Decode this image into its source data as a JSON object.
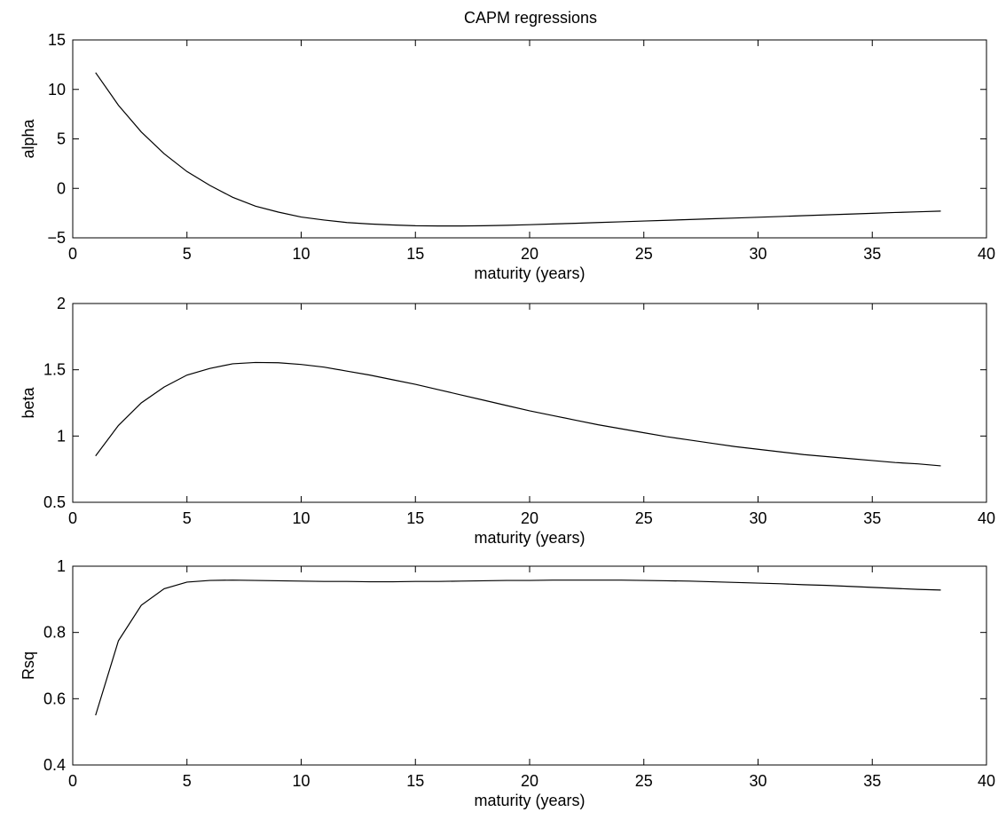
{
  "figure": {
    "title": "CAPM regressions"
  },
  "chart_data": [
    {
      "type": "line",
      "title": "CAPM regressions",
      "xlabel": "maturity (years)",
      "ylabel": "alpha",
      "xlim": [
        0,
        40
      ],
      "ylim": [
        -5,
        15
      ],
      "xticks": [
        0,
        5,
        10,
        15,
        20,
        25,
        30,
        35,
        40
      ],
      "yticks": [
        -5,
        0,
        5,
        10,
        15
      ],
      "ytick_labels": [
        "−5",
        "0",
        "5",
        "10",
        "15"
      ],
      "grid": false,
      "x": [
        1,
        2,
        3,
        4,
        5,
        6,
        7,
        8,
        9,
        10,
        11,
        12,
        13,
        14,
        15,
        16,
        17,
        18,
        19,
        20,
        21,
        22,
        23,
        24,
        25,
        26,
        27,
        28,
        29,
        30,
        31,
        32,
        33,
        34,
        35,
        36,
        37,
        38
      ],
      "series": [
        {
          "color": "#000000",
          "values": [
            11.7,
            8.4,
            5.7,
            3.5,
            1.7,
            0.3,
            -0.9,
            -1.8,
            -2.4,
            -2.9,
            -3.2,
            -3.45,
            -3.6,
            -3.7,
            -3.78,
            -3.8,
            -3.8,
            -3.78,
            -3.73,
            -3.67,
            -3.6,
            -3.53,
            -3.45,
            -3.38,
            -3.3,
            -3.23,
            -3.15,
            -3.07,
            -3.0,
            -2.92,
            -2.84,
            -2.76,
            -2.68,
            -2.6,
            -2.52,
            -2.44,
            -2.37,
            -2.3
          ]
        }
      ]
    },
    {
      "type": "line",
      "title": "",
      "xlabel": "maturity (years)",
      "ylabel": "beta",
      "xlim": [
        0,
        40
      ],
      "ylim": [
        0.5,
        2
      ],
      "xticks": [
        0,
        5,
        10,
        15,
        20,
        25,
        30,
        35,
        40
      ],
      "yticks": [
        0.5,
        1,
        1.5,
        2
      ],
      "ytick_labels": [
        "0.5",
        "1",
        "1.5",
        "2"
      ],
      "grid": false,
      "x": [
        1,
        2,
        3,
        4,
        5,
        6,
        7,
        8,
        9,
        10,
        11,
        12,
        13,
        14,
        15,
        16,
        17,
        18,
        19,
        20,
        21,
        22,
        23,
        24,
        25,
        26,
        27,
        28,
        29,
        30,
        31,
        32,
        33,
        34,
        35,
        36,
        37,
        38
      ],
      "series": [
        {
          "color": "#000000",
          "values": [
            0.85,
            1.08,
            1.25,
            1.37,
            1.46,
            1.51,
            1.545,
            1.555,
            1.553,
            1.54,
            1.52,
            1.49,
            1.46,
            1.425,
            1.39,
            1.35,
            1.31,
            1.27,
            1.23,
            1.19,
            1.155,
            1.12,
            1.085,
            1.055,
            1.025,
            0.995,
            0.97,
            0.945,
            0.92,
            0.9,
            0.88,
            0.86,
            0.845,
            0.83,
            0.815,
            0.8,
            0.79,
            0.775
          ]
        }
      ]
    },
    {
      "type": "line",
      "title": "",
      "xlabel": "maturity (years)",
      "ylabel": "Rsq",
      "xlim": [
        0,
        40
      ],
      "ylim": [
        0.4,
        1
      ],
      "xticks": [
        0,
        5,
        10,
        15,
        20,
        25,
        30,
        35,
        40
      ],
      "yticks": [
        0.4,
        0.6,
        0.8,
        1
      ],
      "ytick_labels": [
        "0.4",
        "0.6",
        "0.8",
        "1"
      ],
      "grid": false,
      "x": [
        1,
        2,
        3,
        4,
        5,
        6,
        7,
        8,
        9,
        10,
        11,
        12,
        13,
        14,
        15,
        16,
        17,
        18,
        19,
        20,
        21,
        22,
        23,
        24,
        25,
        26,
        27,
        28,
        29,
        30,
        31,
        32,
        33,
        34,
        35,
        36,
        37,
        38
      ],
      "series": [
        {
          "color": "#000000",
          "values": [
            0.55,
            0.775,
            0.882,
            0.932,
            0.952,
            0.957,
            0.958,
            0.957,
            0.956,
            0.955,
            0.954,
            0.954,
            0.953,
            0.953,
            0.954,
            0.954,
            0.955,
            0.956,
            0.957,
            0.957,
            0.958,
            0.958,
            0.958,
            0.958,
            0.957,
            0.956,
            0.955,
            0.953,
            0.951,
            0.949,
            0.947,
            0.944,
            0.942,
            0.939,
            0.936,
            0.933,
            0.93,
            0.928
          ]
        }
      ]
    }
  ]
}
